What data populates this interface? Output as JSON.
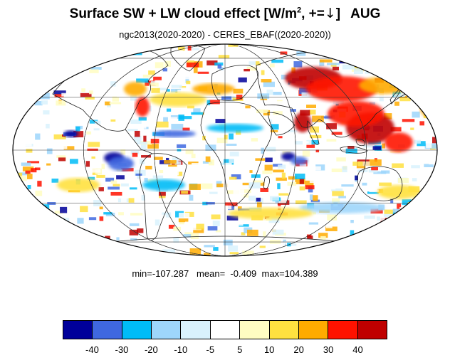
{
  "title": {
    "main": "Surface SW + LW cloud effect [W/m",
    "superscript": "2",
    "suffix": ", +=",
    "arrow": "↓",
    "close": "]",
    "month": "AUG"
  },
  "subtitle": "ngc2013(2020-2020) - CERES_EBAF((2020-2020))",
  "stats": {
    "min_label": "min=",
    "min": "-107.287",
    "mean_label": "mean=",
    "mean": "-0.409",
    "max_label": "max=",
    "max": "104.389"
  },
  "colorbar": {
    "colors": [
      "#00009a",
      "#3f68e0",
      "#00bcf7",
      "#9ed6fb",
      "#d9f2fd",
      "#ffffff",
      "#fffdc2",
      "#ffe140",
      "#ffab00",
      "#ff1200",
      "#c00000"
    ],
    "labels": [
      "-40",
      "-30",
      "-20",
      "-10",
      "-5",
      "5",
      "10",
      "20",
      "30",
      "40"
    ]
  },
  "map": {
    "projection": "mollweide",
    "graticule": true,
    "coastlines": true
  }
}
